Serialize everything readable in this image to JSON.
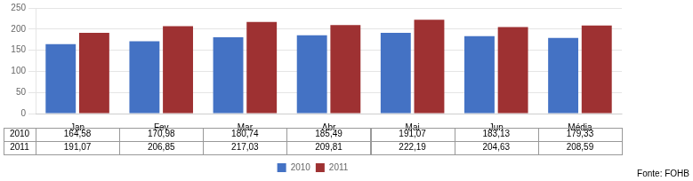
{
  "chart_data": {
    "type": "bar",
    "categories": [
      "Jan",
      "Fev",
      "Mar",
      "Abr",
      "Mai",
      "Jun",
      "Média"
    ],
    "series": [
      {
        "name": "2010",
        "color": "#4472C4",
        "values": [
          164.58,
          170.98,
          180.74,
          185.49,
          191.07,
          183.13,
          179.33
        ],
        "value_labels": [
          "164,58",
          "170,98",
          "180,74",
          "185,49",
          "191,07",
          "183,13",
          "179,33"
        ]
      },
      {
        "name": "2011",
        "color": "#9E3132",
        "values": [
          191.07,
          206.85,
          217.03,
          209.81,
          222.19,
          204.63,
          208.59
        ],
        "value_labels": [
          "191,07",
          "206,85",
          "217,03",
          "209,81",
          "222,19",
          "204,63",
          "208,59"
        ]
      }
    ],
    "ylim": [
      0,
      250
    ],
    "yticks": [
      0,
      50,
      100,
      150,
      200,
      250
    ],
    "grid": true,
    "legend": "bottom",
    "annotations": [
      "Fonte: FOHB"
    ]
  }
}
